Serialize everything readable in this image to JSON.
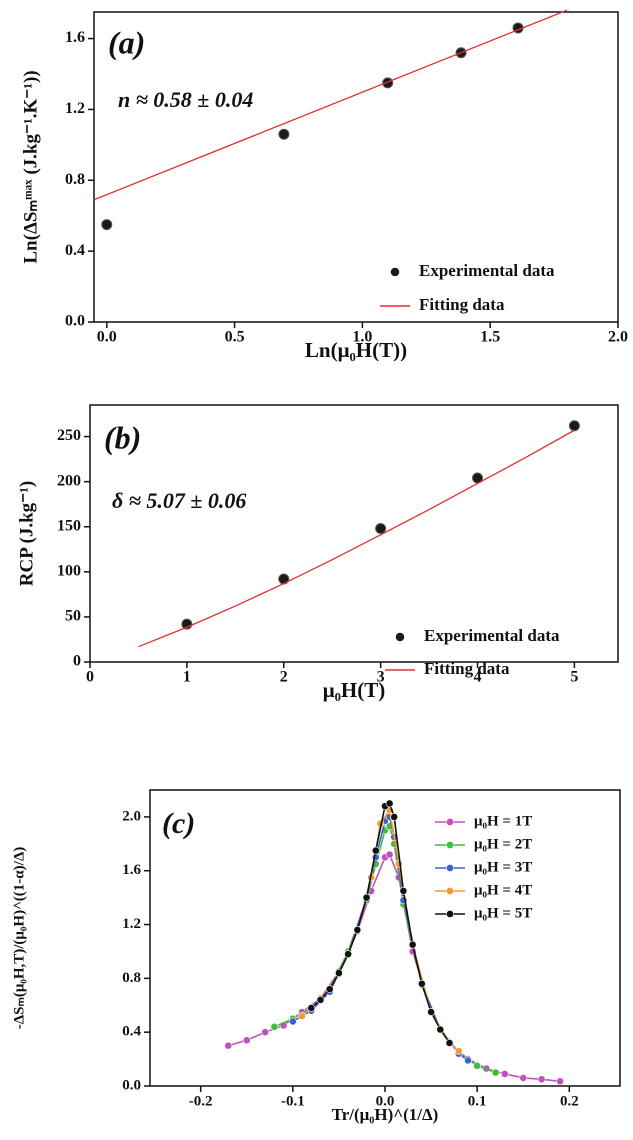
{
  "chart_data": [
    {
      "type": "scatter",
      "annotations": [
        "(a)",
        "n ≈ 0.58 ± 0.04"
      ],
      "xlabel": "Ln(μ₀H(T))",
      "ylabel": "Ln(ΔSₘᵐᵃˣ (J.kg⁻¹.K⁻¹))",
      "xlim": [
        -0.05,
        2.0
      ],
      "ylim": [
        0,
        1.75
      ],
      "xticks": [
        {
          "value": 0,
          "label": "0.0"
        },
        0.5,
        {
          "value": 1,
          "label": "1.0"
        },
        1.5,
        {
          "value": 2,
          "label": "2.0"
        }
      ],
      "yticks": [
        {
          "value": 0,
          "label": "0.0"
        },
        0.4,
        0.8,
        1.2,
        1.6
      ],
      "legend": "lower right",
      "series": [
        {
          "name": "Experimental data",
          "type": "scatter",
          "color": "#1a1a1a",
          "x": [
            0,
            0.693,
            1.099,
            1.386,
            1.609
          ],
          "y": [
            0.55,
            1.06,
            1.35,
            1.52,
            1.66
          ]
        },
        {
          "name": "Fitting data",
          "type": "line",
          "color": "#e03030",
          "x": [
            -0.05,
            1.8
          ],
          "y": [
            0.69,
            1.76
          ]
        }
      ]
    },
    {
      "type": "scatter",
      "annotations": [
        "(b)",
        "δ ≈ 5.07 ± 0.06"
      ],
      "xlabel": "μ₀H(T)",
      "ylabel": "RCP (J.kg⁻¹)",
      "xlim": [
        0,
        5.45
      ],
      "ylim": [
        0,
        285
      ],
      "xticks": [
        0,
        1,
        2,
        3,
        4,
        5
      ],
      "yticks": [
        0,
        50,
        100,
        150,
        200,
        250
      ],
      "legend": "lower right",
      "series": [
        {
          "name": "Experimental data",
          "type": "scatter",
          "color": "#1a1a1a",
          "x": [
            1,
            2,
            3,
            4,
            5
          ],
          "y": [
            42,
            92,
            148,
            204,
            262
          ]
        },
        {
          "name": "Fitting data",
          "type": "line",
          "color": "#e03030",
          "x": [
            0.5,
            1,
            1.5,
            2,
            2.5,
            3,
            3.5,
            4,
            4.5,
            5
          ],
          "y": [
            17,
            38.5,
            62,
            87,
            113.5,
            141,
            169,
            198,
            227,
            257
          ]
        }
      ]
    },
    {
      "type": "line",
      "annotations": [
        "(c)"
      ],
      "xlabel": "Tr/(μ₀H)^(1/Δ)",
      "ylabel": "-ΔSₘ(μ₀H,T)/(μ₀H)^((1-α)/Δ)",
      "xlim": [
        -0.255,
        0.255
      ],
      "ylim": [
        0,
        2.2
      ],
      "xticks": [
        -0.2,
        -0.1,
        {
          "value": 0,
          "label": "0.0"
        },
        0.1,
        0.2
      ],
      "yticks": [
        {
          "value": 0,
          "label": "0.0"
        },
        0.4,
        0.8,
        1.2,
        1.6,
        {
          "value": 2,
          "label": "2.0"
        }
      ],
      "legend": "upper right",
      "series": [
        {
          "name": "μ₀H = 1T",
          "type": "line",
          "marker": true,
          "color": "#c050c0",
          "x": [
            -0.17,
            -0.15,
            -0.13,
            -0.11,
            -0.09,
            -0.07,
            -0.05,
            -0.03,
            -0.015,
            0,
            0.005,
            0.015,
            0.03,
            0.05,
            0.07,
            0.09,
            0.11,
            0.13,
            0.15,
            0.17,
            0.19
          ],
          "y": [
            0.3,
            0.34,
            0.4,
            0.45,
            0.55,
            0.65,
            0.85,
            1.15,
            1.45,
            1.7,
            1.72,
            1.55,
            1.0,
            0.55,
            0.32,
            0.2,
            0.13,
            0.09,
            0.06,
            0.05,
            0.035
          ]
        },
        {
          "name": "μ₀H = 2T",
          "type": "line",
          "marker": true,
          "color": "#3cbf3c",
          "x": [
            -0.12,
            -0.1,
            -0.08,
            -0.06,
            -0.04,
            -0.02,
            -0.01,
            0,
            0.005,
            0.01,
            0.02,
            0.04,
            0.06,
            0.08,
            0.1,
            0.12
          ],
          "y": [
            0.44,
            0.5,
            0.58,
            0.72,
            1.0,
            1.38,
            1.65,
            1.9,
            1.93,
            1.8,
            1.35,
            0.75,
            0.42,
            0.25,
            0.15,
            0.1
          ]
        },
        {
          "name": "μ₀H = 3T",
          "type": "line",
          "marker": true,
          "color": "#4060d0",
          "x": [
            -0.1,
            -0.08,
            -0.06,
            -0.04,
            -0.02,
            -0.01,
            0,
            0.005,
            0.01,
            0.02,
            0.04,
            0.06,
            0.08,
            0.09
          ],
          "y": [
            0.48,
            0.56,
            0.7,
            0.98,
            1.4,
            1.7,
            1.97,
            2.0,
            1.85,
            1.38,
            0.76,
            0.42,
            0.24,
            0.19
          ]
        },
        {
          "name": "μ₀H = 4T",
          "type": "line",
          "marker": true,
          "color": "#f09a3a",
          "x": [
            -0.09,
            -0.07,
            -0.05,
            -0.03,
            -0.015,
            -0.005,
            0.005,
            0.015,
            0.03,
            0.05,
            0.07,
            0.08
          ],
          "y": [
            0.52,
            0.64,
            0.83,
            1.15,
            1.55,
            1.95,
            2.05,
            1.65,
            1.05,
            0.55,
            0.32,
            0.26
          ]
        },
        {
          "name": "μ₀H = 5T",
          "type": "line",
          "marker": true,
          "color": "#111111",
          "x": [
            -0.08,
            -0.07,
            -0.06,
            -0.05,
            -0.04,
            -0.03,
            -0.02,
            -0.01,
            0,
            0.005,
            0.01,
            0.02,
            0.03,
            0.04,
            0.05,
            0.06,
            0.07
          ],
          "y": [
            0.58,
            0.64,
            0.72,
            0.84,
            0.98,
            1.16,
            1.4,
            1.75,
            2.08,
            2.1,
            2.0,
            1.45,
            1.05,
            0.76,
            0.55,
            0.42,
            0.32
          ]
        }
      ]
    }
  ]
}
